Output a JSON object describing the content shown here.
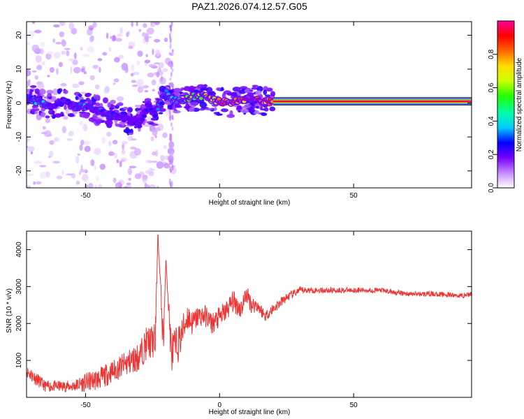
{
  "title": "PAZ1.2026.074.12.57.G05",
  "chart_data": [
    {
      "type": "heatmap",
      "xlabel": "Height of straight line (km)",
      "ylabel": "Frequency (Hz)",
      "xlim": [
        -72,
        94
      ],
      "ylim": [
        -25,
        24
      ],
      "xticks": [
        -50,
        0,
        50
      ],
      "xtick_labels": [
        "-50",
        "0",
        "50"
      ],
      "yticks": [
        20,
        10,
        0,
        -10,
        -20
      ],
      "ytick_labels": [
        "20",
        "10",
        "0",
        "-10",
        "-20"
      ],
      "ridge": {
        "x": [
          -72,
          -70,
          -66,
          -62,
          -58,
          -54,
          -50,
          -46,
          -42,
          -38,
          -34,
          -30,
          -27,
          -24,
          -20,
          -17,
          -14,
          -10,
          -6,
          -2,
          0,
          4,
          8,
          12,
          15,
          18,
          20
        ],
        "freq": [
          1.5,
          1,
          0,
          -1,
          0.5,
          -1,
          -1,
          -2,
          -3,
          -4,
          -5,
          -6,
          -1,
          -3,
          3,
          1,
          0.5,
          2,
          2,
          1,
          0.5,
          0,
          1,
          1.5,
          0.5,
          0.5,
          0.5
        ],
        "amp": [
          0.3,
          0.35,
          0.35,
          0.3,
          0.35,
          0.3,
          0.35,
          0.3,
          0.3,
          0.3,
          0.25,
          0.2,
          0.25,
          0.3,
          0.35,
          0.4,
          0.5,
          0.6,
          0.7,
          0.8,
          0.85,
          0.85,
          0.85,
          0.85,
          0.8,
          0.9,
          1.0
        ]
      },
      "line": {
        "x_start": 20,
        "x_end": 94,
        "freq": 0.5,
        "amp": 1.0
      },
      "colorbar": {
        "label": "Normalized spectral amplitude",
        "ticks": [
          0.0,
          0.2,
          0.4,
          0.6,
          0.8
        ],
        "tick_labels": [
          "0.0",
          "0.2",
          "0.4",
          "0.6",
          "0.8"
        ],
        "range": [
          0,
          1
        ]
      }
    },
    {
      "type": "line",
      "xlabel": "Height of straight line (km)",
      "ylabel": "SNR (10 * v/v)",
      "xlim": [
        -72,
        94
      ],
      "ylim": [
        0,
        4500
      ],
      "xticks": [
        -50,
        0,
        50
      ],
      "xtick_labels": [
        "-50",
        "0",
        "50"
      ],
      "yticks": [
        1000,
        2000,
        3000,
        4000
      ],
      "ytick_labels": [
        "1000",
        "2000",
        "3000",
        "4000"
      ],
      "color": "#ee3333",
      "series": [
        {
          "name": "SNR",
          "x": [
            -72,
            -70,
            -65,
            -60,
            -55,
            -50,
            -45,
            -40,
            -35,
            -30,
            -27,
            -24,
            -23,
            -21,
            -20,
            -18,
            -15,
            -12,
            -10,
            -8,
            -5,
            -3,
            -1,
            2,
            5,
            8,
            10,
            12,
            14,
            17,
            20,
            25,
            30,
            35,
            40,
            50,
            60,
            70,
            80,
            90,
            94
          ],
          "values": [
            700,
            600,
            300,
            300,
            300,
            400,
            500,
            700,
            900,
            1100,
            1500,
            1500,
            4400,
            1500,
            3700,
            1200,
            1500,
            2200,
            2000,
            2200,
            2200,
            2000,
            2100,
            2300,
            2600,
            2400,
            2800,
            2500,
            2500,
            2200,
            2400,
            2700,
            2900,
            2900,
            2900,
            2900,
            2900,
            2800,
            2800,
            2750,
            2800
          ],
          "noise": [
            150,
            200,
            150,
            150,
            150,
            250,
            300,
            300,
            350,
            400,
            450,
            500,
            0,
            600,
            0,
            600,
            500,
            400,
            350,
            300,
            300,
            300,
            300,
            300,
            300,
            300,
            250,
            250,
            200,
            150,
            150,
            120,
            100,
            80,
            80,
            70,
            70,
            70,
            70,
            70,
            70
          ]
        }
      ]
    }
  ]
}
